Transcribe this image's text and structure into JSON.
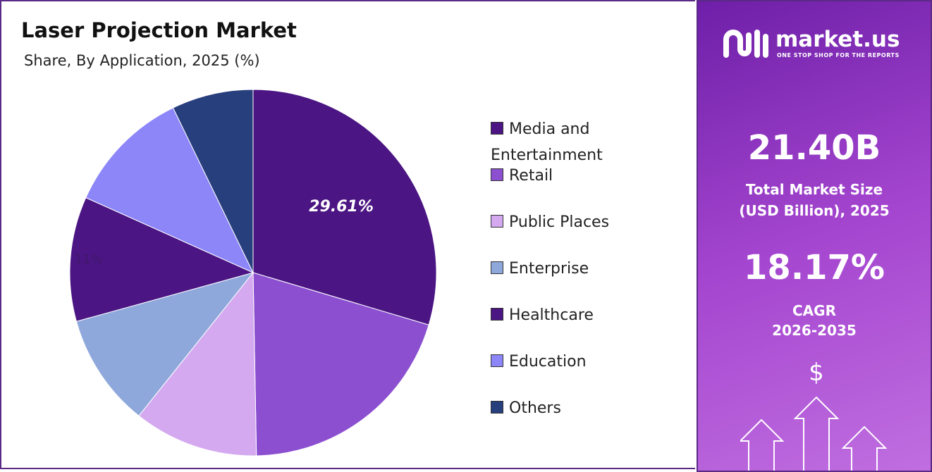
{
  "chart_data": {
    "type": "pie",
    "title": "Laser Projection Market",
    "subtitle": "Share, By Application, 2025 (%)",
    "categories": [
      "Media and Entertainment",
      "Retail",
      "Public Places",
      "Enterprise",
      "Healthcare",
      "Education",
      "Others"
    ],
    "values": [
      29.61,
      20.1,
      11,
      10,
      11,
      11.1,
      7.19
    ],
    "value_labels": [
      "29.61%",
      null,
      null,
      null,
      "11%",
      null,
      null
    ],
    "colors": [
      "#4b1583",
      "#8b4fd0",
      "#d4a9f0",
      "#8fa8dc",
      "#4b1583",
      "#8c86f8",
      "#283f7e"
    ],
    "legend": "right"
  },
  "panel": {
    "brand": "market.us",
    "tagline": "ONE STOP SHOP FOR THE REPORTS",
    "market_size": "21.40B",
    "market_size_label": "Total Market Size (USD Billion), 2025",
    "cagr": "18.17%",
    "cagr_label": "CAGR",
    "cagr_period": "2026-2035"
  }
}
